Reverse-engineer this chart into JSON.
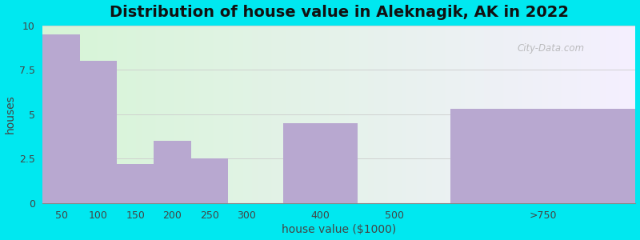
{
  "title": "Distribution of house value in Aleknagik, AK in 2022",
  "xlabel": "house value ($1000)",
  "ylabel": "houses",
  "bar_lefts": [
    25,
    75,
    125,
    175,
    225,
    275,
    350,
    450,
    575
  ],
  "bar_widths": [
    50,
    50,
    50,
    50,
    50,
    50,
    100,
    100,
    250
  ],
  "bar_heights": [
    9.5,
    8.0,
    2.2,
    3.5,
    2.5,
    0.0,
    4.5,
    0.0,
    5.3
  ],
  "xtick_positions": [
    50,
    100,
    150,
    200,
    250,
    300,
    400,
    500,
    700
  ],
  "xtick_labels": [
    "50",
    "100",
    "150",
    "200",
    "250",
    "300",
    "400",
    "500",
    ">750"
  ],
  "bar_color": "#b8a8d0",
  "ylim": [
    0,
    10
  ],
  "xlim": [
    25,
    825
  ],
  "yticks": [
    0,
    2.5,
    5,
    7.5,
    10
  ],
  "bg_outer": "#00e8f0",
  "title_fontsize": 14,
  "axis_label_fontsize": 10,
  "tick_fontsize": 9,
  "watermark": "City-Data.com"
}
